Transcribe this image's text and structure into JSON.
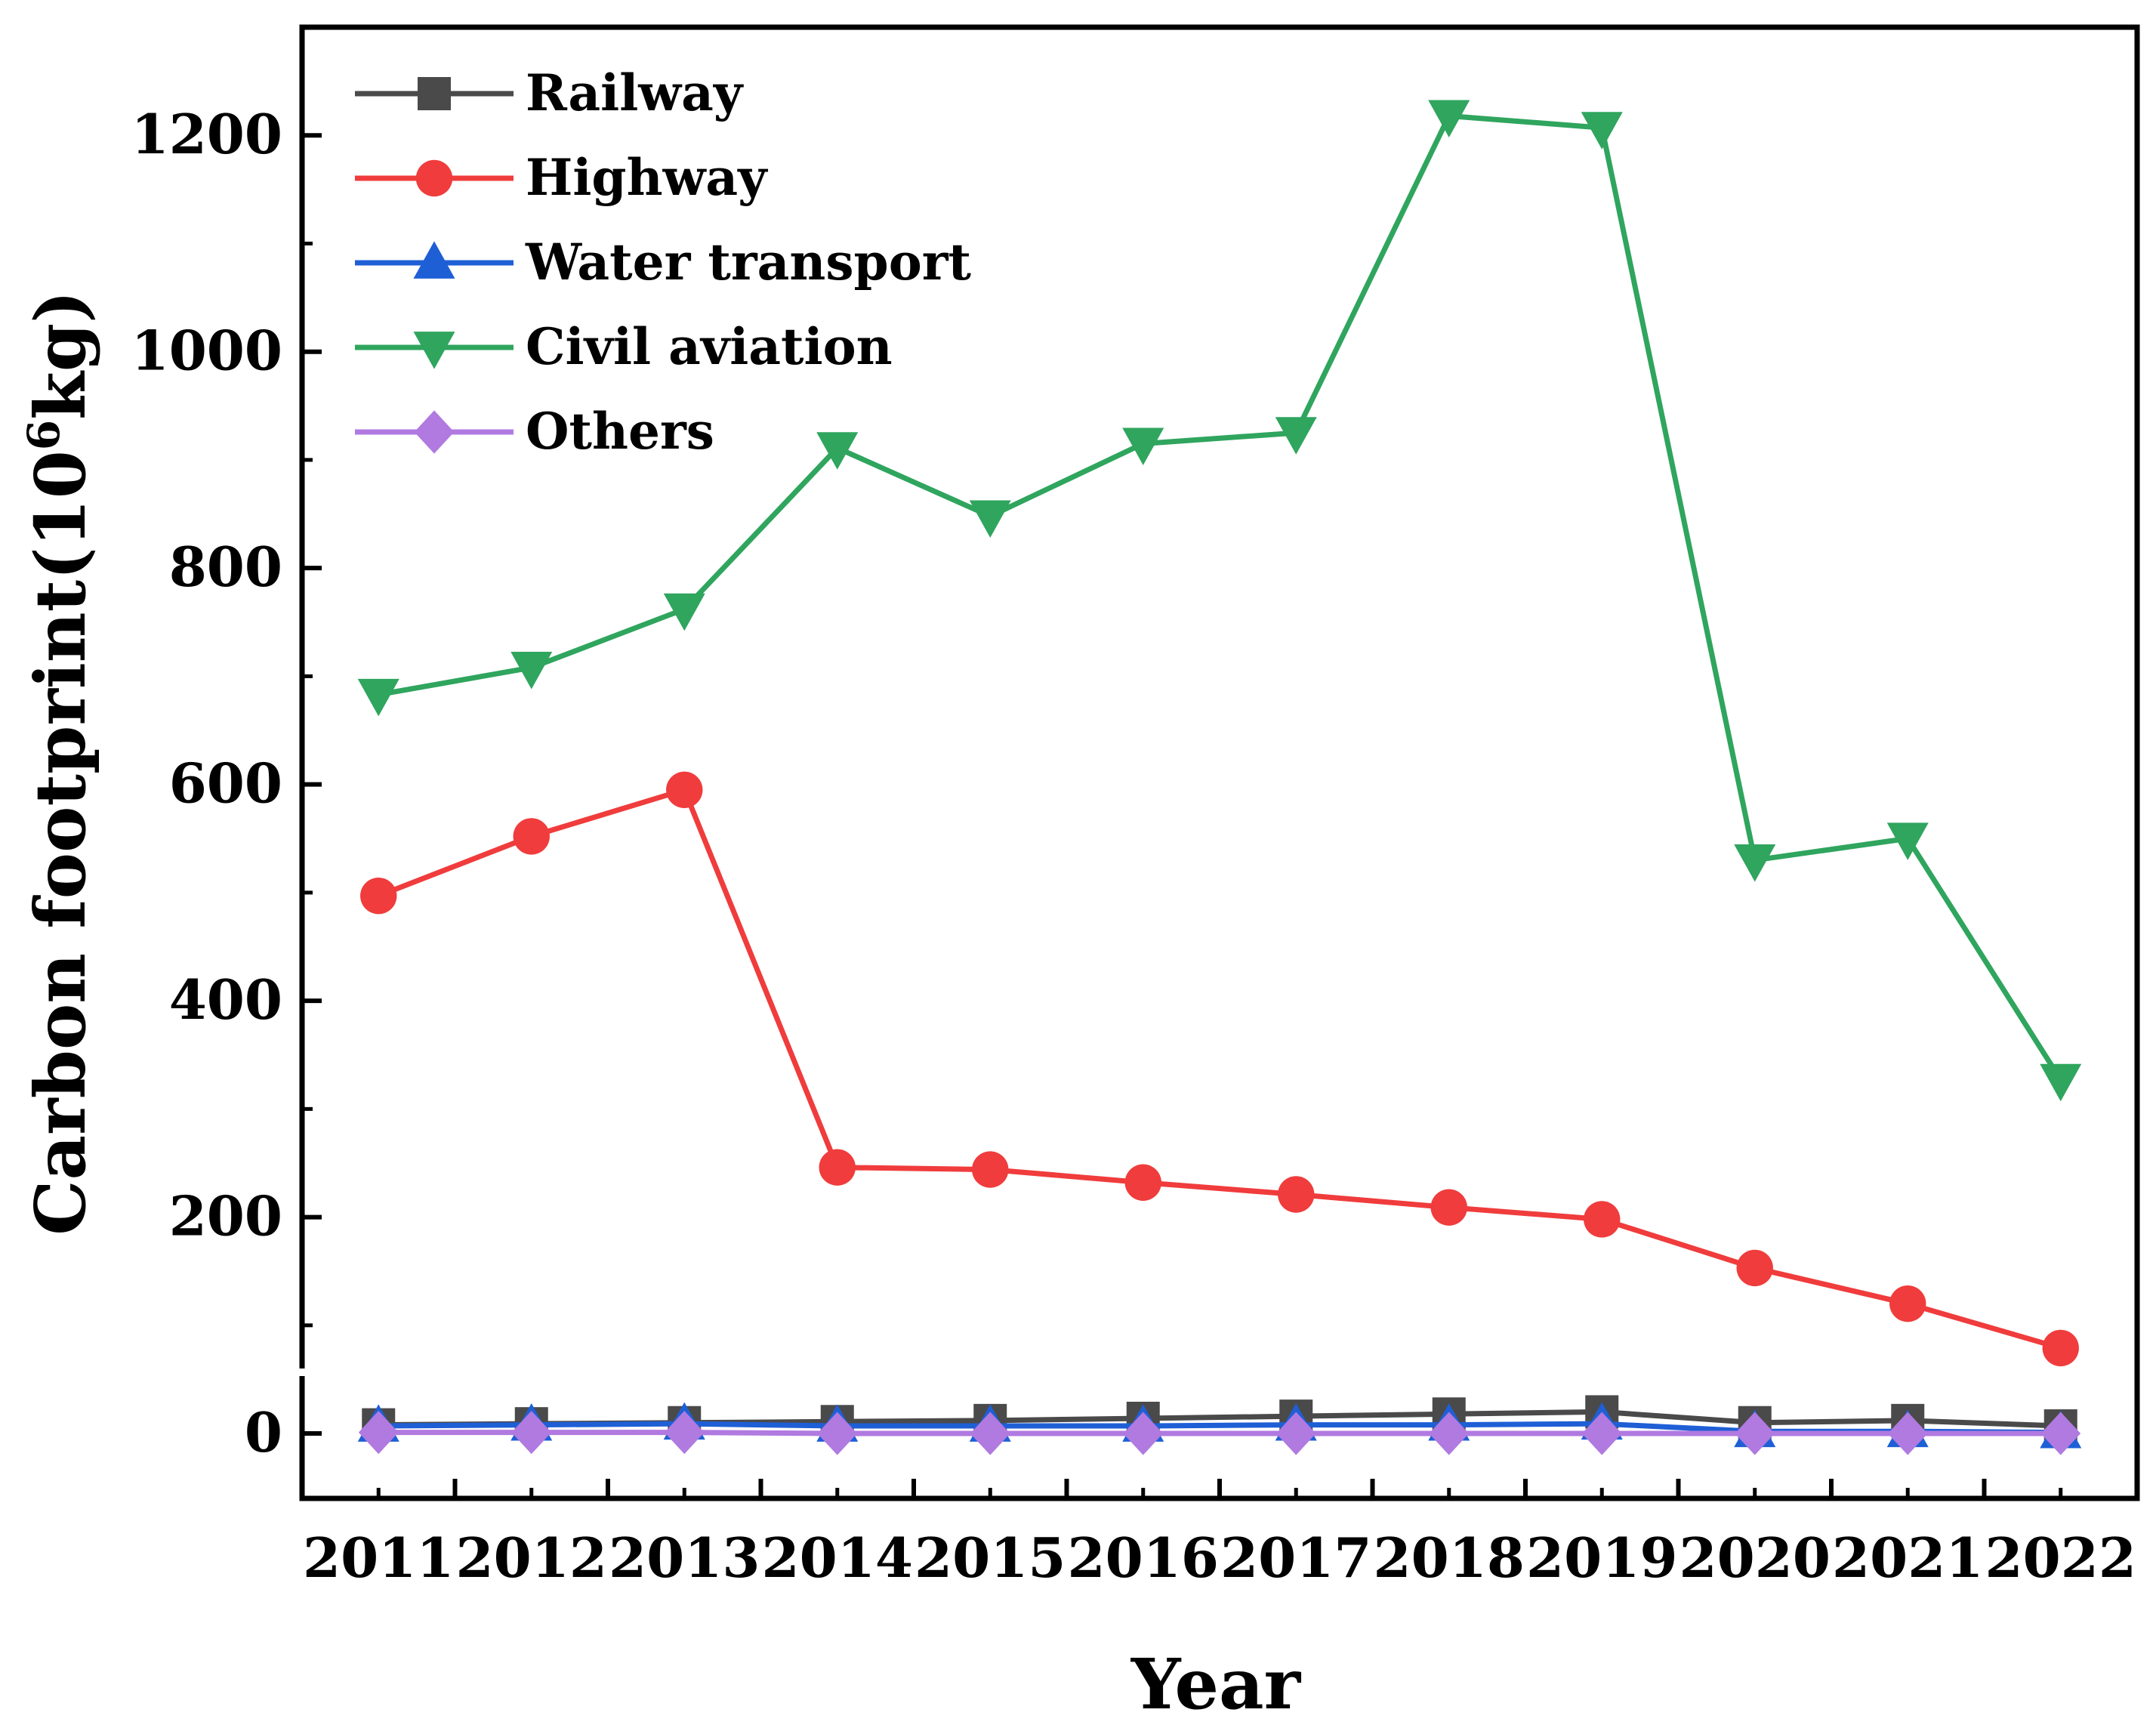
{
  "chart_data": {
    "type": "line",
    "title": "",
    "xlabel": "Year",
    "ylabel": {
      "prefix": "Carbon footprint(10",
      "superscript": "6",
      "suffix": "kg)"
    },
    "categories": [
      "2011",
      "2012",
      "2013",
      "2014",
      "2015",
      "2016",
      "2017",
      "2018",
      "2019",
      "2020",
      "2021",
      "2022"
    ],
    "ylim": [
      -60,
      1300
    ],
    "yticks": [
      "0",
      "200",
      "400",
      "600",
      "800",
      "1000",
      "1200"
    ],
    "legend_position": "top-left",
    "series": [
      {
        "name": "Railway",
        "color": "#4a4a4a",
        "marker": "square",
        "values": [
          8,
          9,
          10,
          11,
          12,
          14,
          16,
          18,
          20,
          10,
          12,
          7
        ]
      },
      {
        "name": "Highway",
        "color": "#f03c3c",
        "marker": "circle",
        "values": [
          497,
          552,
          595,
          246,
          244,
          232,
          221,
          209,
          198,
          153,
          120,
          79
        ]
      },
      {
        "name": "Water transport",
        "color": "#1f5fd6",
        "marker": "triangle-up",
        "values": [
          7,
          8,
          9,
          7,
          7,
          7,
          8,
          8,
          9,
          2,
          2,
          1
        ]
      },
      {
        "name": "Civil aviation",
        "color": "#2fa55e",
        "marker": "triangle-down",
        "values": [
          683,
          708,
          762,
          911,
          848,
          915,
          925,
          1218,
          1207,
          530,
          550,
          327
        ]
      },
      {
        "name": "Others",
        "color": "#b07ae0",
        "marker": "diamond",
        "values": [
          1,
          1,
          1,
          0,
          0,
          0,
          0,
          0,
          0,
          0,
          0,
          0
        ]
      }
    ]
  }
}
